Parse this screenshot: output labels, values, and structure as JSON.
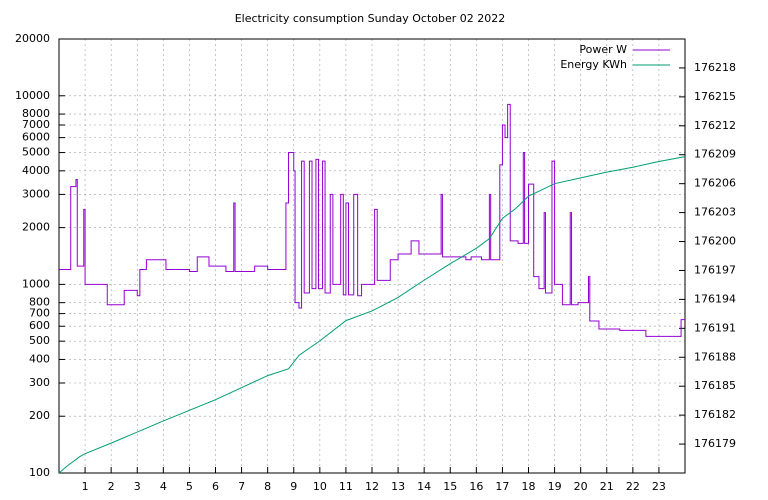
{
  "chart_data": {
    "type": "line",
    "title": "Electricity consumption Sunday October 02 2022",
    "xlim": [
      0,
      24
    ],
    "xticks": [
      1,
      2,
      3,
      4,
      5,
      6,
      7,
      8,
      9,
      10,
      11,
      12,
      13,
      14,
      15,
      16,
      17,
      18,
      19,
      20,
      21,
      22,
      23
    ],
    "ylim": [
      100,
      20000
    ],
    "ylog": true,
    "yticks": [
      100,
      200,
      300,
      400,
      500,
      600,
      700,
      800,
      1000,
      2000,
      3000,
      4000,
      5000,
      6000,
      7000,
      8000,
      10000,
      20000
    ],
    "y2lim": [
      176176,
      176221
    ],
    "y2ticks": [
      176179,
      176182,
      176185,
      176188,
      176191,
      176194,
      176197,
      176200,
      176203,
      176206,
      176209,
      176212,
      176215,
      176218
    ],
    "grid": true,
    "legend": "top-right",
    "series": [
      {
        "name": "Power W",
        "color": "#9400d3",
        "steps": true,
        "x": [
          0,
          0.45,
          0.65,
          0.7,
          0.95,
          1.0,
          1.85,
          2.5,
          3.0,
          3.1,
          3.35,
          4.1,
          5.0,
          5.3,
          5.75,
          6.4,
          6.7,
          6.75,
          7.5,
          8.0,
          8.7,
          8.8,
          9.0,
          9.05,
          9.2,
          9.3,
          9.4,
          9.6,
          9.7,
          9.85,
          9.95,
          10.1,
          10.2,
          10.4,
          10.5,
          10.8,
          10.9,
          11.0,
          11.1,
          11.3,
          11.45,
          11.6,
          12.1,
          12.2,
          12.7,
          13.0,
          13.5,
          13.8,
          14.4,
          14.65,
          14.7,
          15.6,
          15.8,
          16.2,
          16.5,
          16.55,
          16.9,
          17.0,
          17.1,
          17.2,
          17.3,
          17.6,
          17.8,
          17.85,
          18.0,
          18.2,
          18.4,
          18.6,
          18.65,
          18.9,
          19.0,
          19.3,
          19.6,
          19.65,
          19.9,
          20.3,
          20.35,
          20.7,
          21.5,
          22.4,
          22.5,
          23.8,
          23.85,
          24
        ],
        "values": [
          1200,
          3300,
          3600,
          1250,
          2500,
          1000,
          780,
          930,
          870,
          1200,
          1350,
          1200,
          1170,
          1400,
          1250,
          1170,
          2700,
          1170,
          1250,
          1200,
          2700,
          5000,
          4000,
          800,
          750,
          4500,
          900,
          4500,
          950,
          4600,
          950,
          4500,
          900,
          3000,
          1000,
          3000,
          880,
          2700,
          880,
          3000,
          870,
          1000,
          2500,
          1050,
          1350,
          1450,
          1700,
          1450,
          1450,
          3000,
          1400,
          1350,
          1400,
          1350,
          3000,
          1350,
          4300,
          7000,
          6000,
          9000,
          1700,
          1650,
          5000,
          1650,
          3400,
          1100,
          950,
          2400,
          900,
          4500,
          1000,
          780,
          2400,
          780,
          800,
          1100,
          640,
          580,
          570,
          570,
          530,
          530,
          650,
          650
        ]
      },
      {
        "name": "Energy KWh",
        "color": "#009e73",
        "axis": "y2",
        "x": [
          0,
          0.3,
          0.8,
          1,
          2,
          4,
          6,
          8,
          8.8,
          9.2,
          10,
          11,
          12,
          13,
          14,
          15,
          16,
          16.5,
          17,
          17.5,
          18,
          19,
          20,
          21,
          22,
          23,
          24
        ],
        "values": [
          176176,
          176176.7,
          176177.7,
          176178,
          176179.1,
          176181.4,
          176183.6,
          176186.1,
          176186.8,
          176188.2,
          176189.7,
          176191.8,
          176192.8,
          176194.2,
          176196,
          176197.7,
          176199.3,
          176200.3,
          176202.4,
          176203.4,
          176204.7,
          176206,
          176206.6,
          176207.2,
          176207.7,
          176208.3,
          176208.8
        ]
      }
    ]
  }
}
